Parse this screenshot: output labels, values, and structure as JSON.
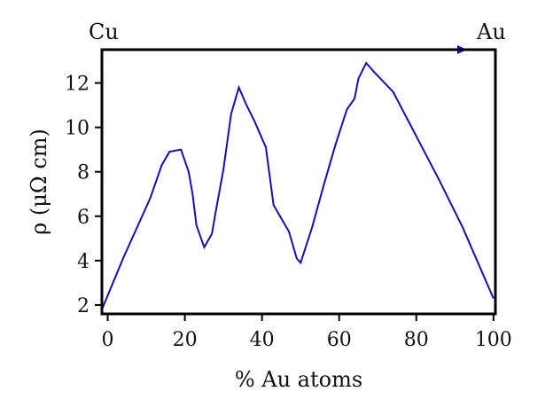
{
  "chart_data": {
    "type": "line",
    "title": "",
    "xlabel": "% Au atoms",
    "ylabel": "ρ (μΩ cm)",
    "xlim": [
      -1.5,
      100.5
    ],
    "ylim": [
      1.6,
      13.5
    ],
    "xticks": [
      0,
      20,
      40,
      60,
      80,
      100
    ],
    "yticks": [
      2,
      4,
      6,
      8,
      10,
      12
    ],
    "xtick_labels": [
      "0",
      "20",
      "40",
      "60",
      "80",
      "100"
    ],
    "ytick_labels": [
      "2",
      "4",
      "6",
      "8",
      "10",
      "12"
    ],
    "grid": false,
    "legend": "none",
    "annotations": {
      "left": "Cu",
      "right": "Au",
      "arrow": "Cu → Au along top edge"
    },
    "colors": {
      "series": "#1010c0",
      "frame": "#000000",
      "arrow": "#1010c0"
    },
    "series": [
      {
        "x": [
          -1.5,
          4,
          11,
          14,
          16,
          19,
          21,
          22,
          23,
          25,
          27,
          28,
          30,
          32,
          34,
          36,
          38,
          41,
          43,
          45,
          47,
          49,
          50,
          53,
          56,
          59,
          62,
          64,
          65,
          67,
          69,
          74,
          80,
          86,
          92,
          100
        ],
        "y": [
          1.8,
          4.1,
          6.8,
          8.3,
          8.9,
          9.0,
          8.0,
          7.0,
          5.6,
          4.6,
          5.2,
          6.2,
          8.1,
          10.6,
          11.8,
          11.0,
          10.3,
          9.1,
          6.5,
          5.9,
          5.3,
          4.1,
          3.9,
          5.5,
          7.4,
          9.2,
          10.8,
          11.3,
          12.2,
          12.9,
          12.5,
          11.6,
          9.6,
          7.6,
          5.5,
          2.3
        ]
      }
    ]
  }
}
